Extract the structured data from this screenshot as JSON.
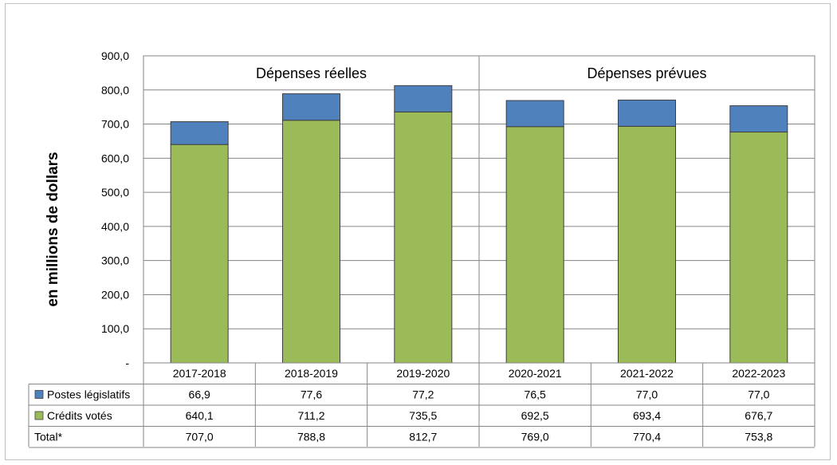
{
  "chart_data": {
    "type": "bar",
    "stacked": true,
    "ylabel": "en millions de dollars",
    "ylim": [
      0,
      900
    ],
    "yticks": [
      0,
      100,
      200,
      300,
      400,
      500,
      600,
      700,
      800,
      900
    ],
    "ytick_labels": [
      "-",
      "100,0",
      "200,0",
      "300,0",
      "400,0",
      "500,0",
      "600,0",
      "700,0",
      "800,0",
      "900,0"
    ],
    "grid": true,
    "categories": [
      "2017-2018",
      "2018-2019",
      "2019-2020",
      "2020-2021",
      "2021-2022",
      "2022-2023"
    ],
    "groups": [
      {
        "label": "Dépenses réelles",
        "categories": [
          "2017-2018",
          "2018-2019",
          "2019-2020"
        ]
      },
      {
        "label": "Dépenses prévues",
        "categories": [
          "2020-2021",
          "2021-2022",
          "2022-2023"
        ]
      }
    ],
    "series": [
      {
        "name": "Crédits votés",
        "color": "#9bbb59",
        "values": [
          640.1,
          711.2,
          735.5,
          692.5,
          693.4,
          676.7
        ],
        "value_labels": [
          "640,1",
          "711,2",
          "735,5",
          "692,5",
          "693,4",
          "676,7"
        ]
      },
      {
        "name": "Postes législatifs",
        "color": "#4f81bd",
        "values": [
          66.9,
          77.6,
          77.2,
          76.5,
          77.0,
          77.0
        ],
        "value_labels": [
          "66,9",
          "77,6",
          "77,2",
          "76,5",
          "77,0",
          "77,0"
        ]
      }
    ],
    "table_rows": [
      {
        "label": "Postes législatifs",
        "swatch": "#4f81bd",
        "values": [
          "66,9",
          "77,6",
          "77,2",
          "76,5",
          "77,0",
          "77,0"
        ]
      },
      {
        "label": "Crédits votés",
        "swatch": "#9bbb59",
        "values": [
          "640,1",
          "711,2",
          "735,5",
          "692,5",
          "693,4",
          "676,7"
        ]
      },
      {
        "label": "Total*",
        "swatch": null,
        "values": [
          "707,0",
          "788,8",
          "812,7",
          "769,0",
          "770,4",
          "753,8"
        ]
      }
    ]
  }
}
